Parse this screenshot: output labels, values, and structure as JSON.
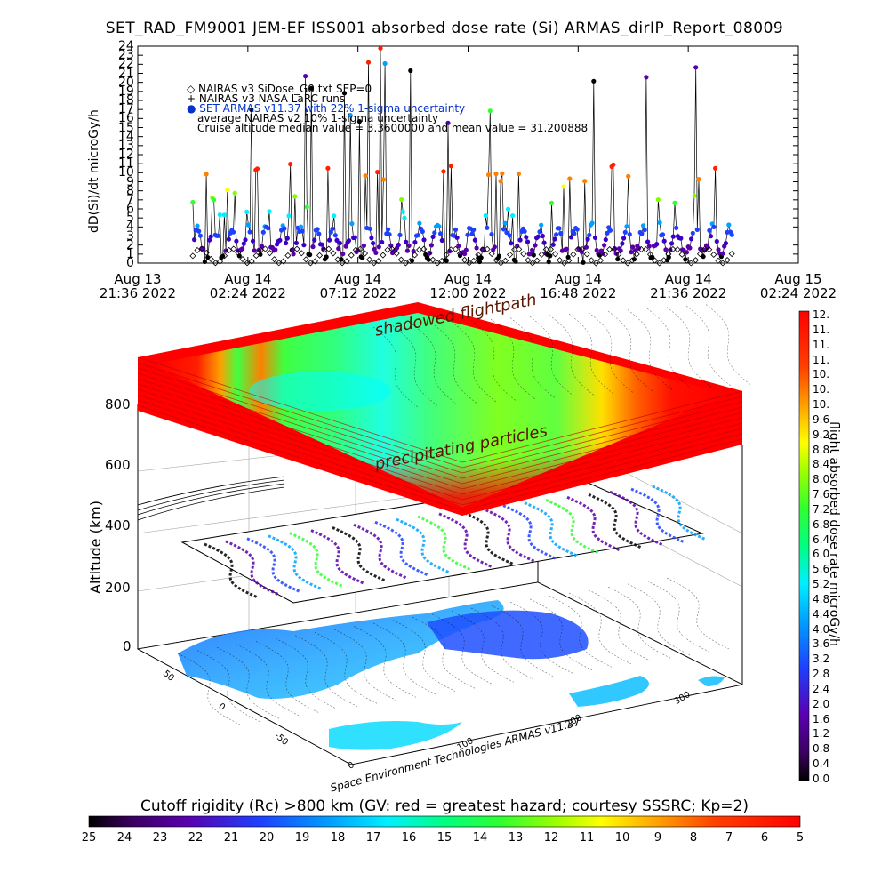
{
  "title": "SET_RAD_FM9001   JEM-EF ISS001 absorbed dose rate (Si) ARMAS_dirIP_Report_08009",
  "top_chart": {
    "ylabel": "dD(Si)/dt microGy/h",
    "legend": [
      "◇ NAIRAS v3 SiDose_G0.txt SEP=0",
      "+ NAIRAS v3 NASA LaRC runs",
      "● SET ARMAS v11.37 with 22% 1-sigma uncertainty",
      "average NAIRAS v2 10% 1-sigma uncertainty",
      "Cruise altitude median value = 3.3600000 and mean value = 31.200888"
    ],
    "x_ticks": [
      {
        "line1": "Aug 13",
        "line2": "21:36 2022"
      },
      {
        "line1": "Aug 14",
        "line2": "02:24 2022"
      },
      {
        "line1": "Aug 14",
        "line2": "07:12 2022"
      },
      {
        "line1": "Aug 14",
        "line2": "12:00 2022"
      },
      {
        "line1": "Aug 14",
        "line2": "16:48 2022"
      },
      {
        "line1": "Aug 14",
        "line2": "21:36 2022"
      },
      {
        "line1": "Aug 15",
        "line2": "02:24 2022"
      }
    ]
  },
  "chart_data": {
    "type": "scatter",
    "title": "SET_RAD_FM9001   JEM-EF ISS001 absorbed dose rate (Si) ARMAS_dirIP_Report_08009",
    "ylabel": "dD(Si)/dt microGy/h",
    "xlabel": "",
    "ylim": [
      0,
      24
    ],
    "y_ticks": [
      0,
      1,
      2,
      3,
      4,
      5,
      6,
      7,
      8,
      9,
      10,
      11,
      12,
      13,
      14,
      15,
      16,
      17,
      18,
      19,
      20,
      21,
      22,
      23,
      24
    ],
    "xlim": [
      "2022-08-13 21:36",
      "2022-08-15 02:24"
    ],
    "data_span": [
      "2022-08-14 00:00",
      "2022-08-14 23:30"
    ],
    "series": [
      {
        "name": "NAIRAS v3 SiDose_G0.txt SEP=0",
        "marker": "diamond",
        "range": [
          0,
          3
        ]
      },
      {
        "name": "NAIRAS v3 NASA LaRC runs",
        "marker": "plus",
        "range": [
          0,
          3
        ]
      },
      {
        "name": "SET ARMAS v11.37 with 22% 1-sigma uncertainty",
        "marker": "dot",
        "range": [
          0,
          24
        ]
      }
    ],
    "annotation": "Cruise altitude median value = 3.3600000 and mean value = 31.200888"
  },
  "scene": {
    "altitude_label": "Altitude (km)",
    "altitude_ticks": [
      "0",
      "200",
      "400",
      "600",
      "800"
    ],
    "lat_ticks": [
      "50",
      "0",
      "-50"
    ],
    "lon_ticks": [
      "0",
      "100",
      "200",
      "300"
    ],
    "label_shadowed": "shadowed flightpath",
    "label_precip": "precipitating particles",
    "credit": "Space Environment Technologies ARMAS v11.37"
  },
  "right_colorbar": {
    "title": "flight absorbed dose rate microGy/h",
    "labels": [
      "12.",
      "11.",
      "11.",
      "11.",
      "10.",
      "10.",
      "10.",
      "9.6",
      "9.2",
      "8.8",
      "8.4",
      "8.0",
      "7.6",
      "7.2",
      "6.8",
      "6.4",
      "6.0",
      "5.6",
      "5.2",
      "4.8",
      "4.4",
      "4.0",
      "3.6",
      "3.2",
      "2.8",
      "2.4",
      "2.0",
      "1.6",
      "1.2",
      "0.8",
      "0.4",
      "0.0"
    ]
  },
  "bottom_colorbar": {
    "title": "Cutoff rigidity (Rc) >800 km (GV: red = greatest hazard; courtesy SSSRC; Kp=2)",
    "labels": [
      "25",
      "24",
      "23",
      "22",
      "21",
      "20",
      "19",
      "18",
      "17",
      "16",
      "15",
      "14",
      "13",
      "12",
      "11",
      "10",
      "9",
      "8",
      "7",
      "6",
      "5"
    ]
  },
  "colors": {
    "accent_red": "#ff0000",
    "low": "#000000",
    "purple": "#5a00a8",
    "blue": "#0050ff",
    "cyan": "#00e0ff",
    "green": "#30ff30",
    "yellow": "#ffff00",
    "orange": "#ff8000"
  }
}
